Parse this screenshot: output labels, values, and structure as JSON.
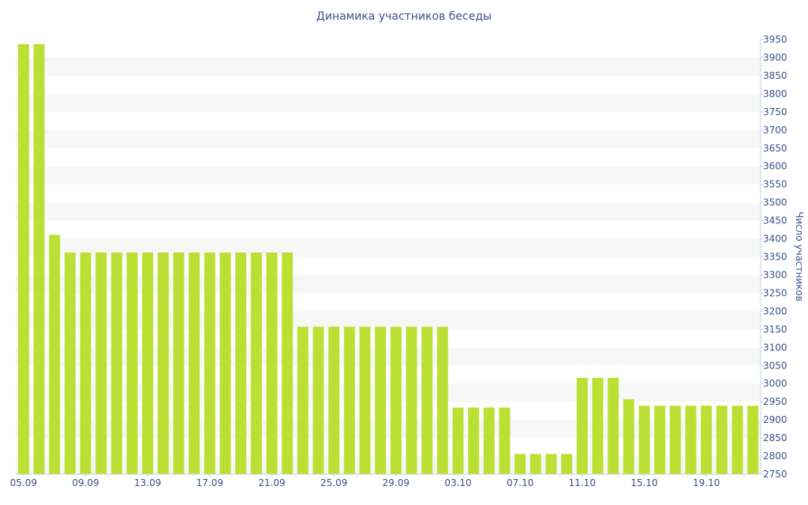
{
  "chart_data": {
    "type": "bar",
    "title": "Динамика участников беседы",
    "xlabel": "",
    "ylabel": "Число участников",
    "ylim": [
      2750,
      3950
    ],
    "y_ticks": [
      2750,
      2800,
      2850,
      2900,
      2950,
      3000,
      3050,
      3100,
      3150,
      3200,
      3250,
      3300,
      3350,
      3400,
      3450,
      3500,
      3550,
      3600,
      3650,
      3700,
      3750,
      3800,
      3850,
      3900,
      3950
    ],
    "y_axis_position": "right",
    "grid": "alternating horizontal bands",
    "legend": "none",
    "bar_color": "#bbe033",
    "band_color": "#f7f7f7",
    "text_color": "#3a4e8c",
    "categories": [
      "05.09",
      "06.09",
      "07.09",
      "08.09",
      "09.09",
      "10.09",
      "11.09",
      "12.09",
      "13.09",
      "14.09",
      "15.09",
      "16.09",
      "17.09",
      "18.09",
      "19.09",
      "20.09",
      "21.09",
      "22.09",
      "23.09",
      "24.09",
      "25.09",
      "26.09",
      "27.09",
      "28.09",
      "29.09",
      "30.09",
      "01.10",
      "02.10",
      "03.10",
      "04.10",
      "05.10",
      "06.10",
      "07.10",
      "08.10",
      "09.10",
      "10.10",
      "11.10",
      "12.10",
      "13.10",
      "14.10",
      "15.10",
      "16.10",
      "17.10",
      "18.10",
      "19.10",
      "20.10",
      "21.10",
      "22.10"
    ],
    "shown_x_ticks": [
      "05.09",
      "09.09",
      "13.09",
      "17.09",
      "21.09",
      "25.09",
      "29.09",
      "03.10",
      "07.10",
      "11.10",
      "15.10",
      "19.10"
    ],
    "values": [
      3937,
      3937,
      3411,
      3362,
      3362,
      3362,
      3362,
      3362,
      3362,
      3362,
      3362,
      3362,
      3362,
      3362,
      3362,
      3362,
      3362,
      3362,
      3157,
      3157,
      3157,
      3157,
      3157,
      3157,
      3157,
      3157,
      3157,
      3157,
      2934,
      2934,
      2934,
      2934,
      2806,
      2806,
      2806,
      2806,
      3016,
      3016,
      3016,
      2957,
      2939,
      2939,
      2939,
      2939,
      2939,
      2939,
      2939,
      2939
    ]
  }
}
